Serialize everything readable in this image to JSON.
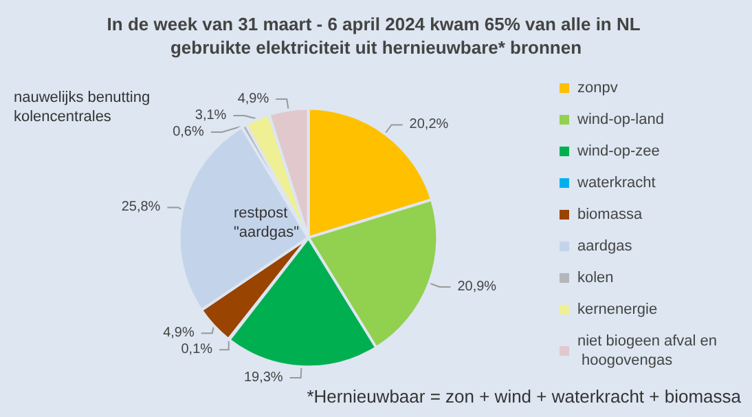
{
  "chart_data": {
    "type": "pie",
    "title": "In de week van 31 maart - 6 april 2024 kwam 65% van alle in NL gebruikte elektriciteit uit hernieuwbare* bronnen",
    "categories": [
      "zonpv",
      "wind-op-land",
      "wind-op-zee",
      "waterkracht",
      "biomassa",
      "aardgas",
      "kolen",
      "kernenergie",
      "niet biogeen afval en hoogovengas"
    ],
    "values": [
      20.2,
      20.9,
      19.3,
      0.1,
      4.9,
      25.8,
      0.6,
      3.1,
      4.9
    ],
    "colors": [
      "#ffc000",
      "#92d050",
      "#00b050",
      "#00b0f0",
      "#994400",
      "#c3d4ea",
      "#b4b6b9",
      "#eef093",
      "#e0c8cc"
    ],
    "value_labels": [
      "20,2%",
      "20,9%",
      "19,3%",
      "0,1%",
      "4,9%",
      "25,8%",
      "0,6%",
      "3,1%",
      "4,9%"
    ],
    "legend": "right",
    "annotations": [
      "nauwelijks benutting kolencentrales",
      "restpost \"aardgas\"",
      "*Hernieuwbaar = zon + wind + waterkracht + biomassa"
    ]
  }
}
